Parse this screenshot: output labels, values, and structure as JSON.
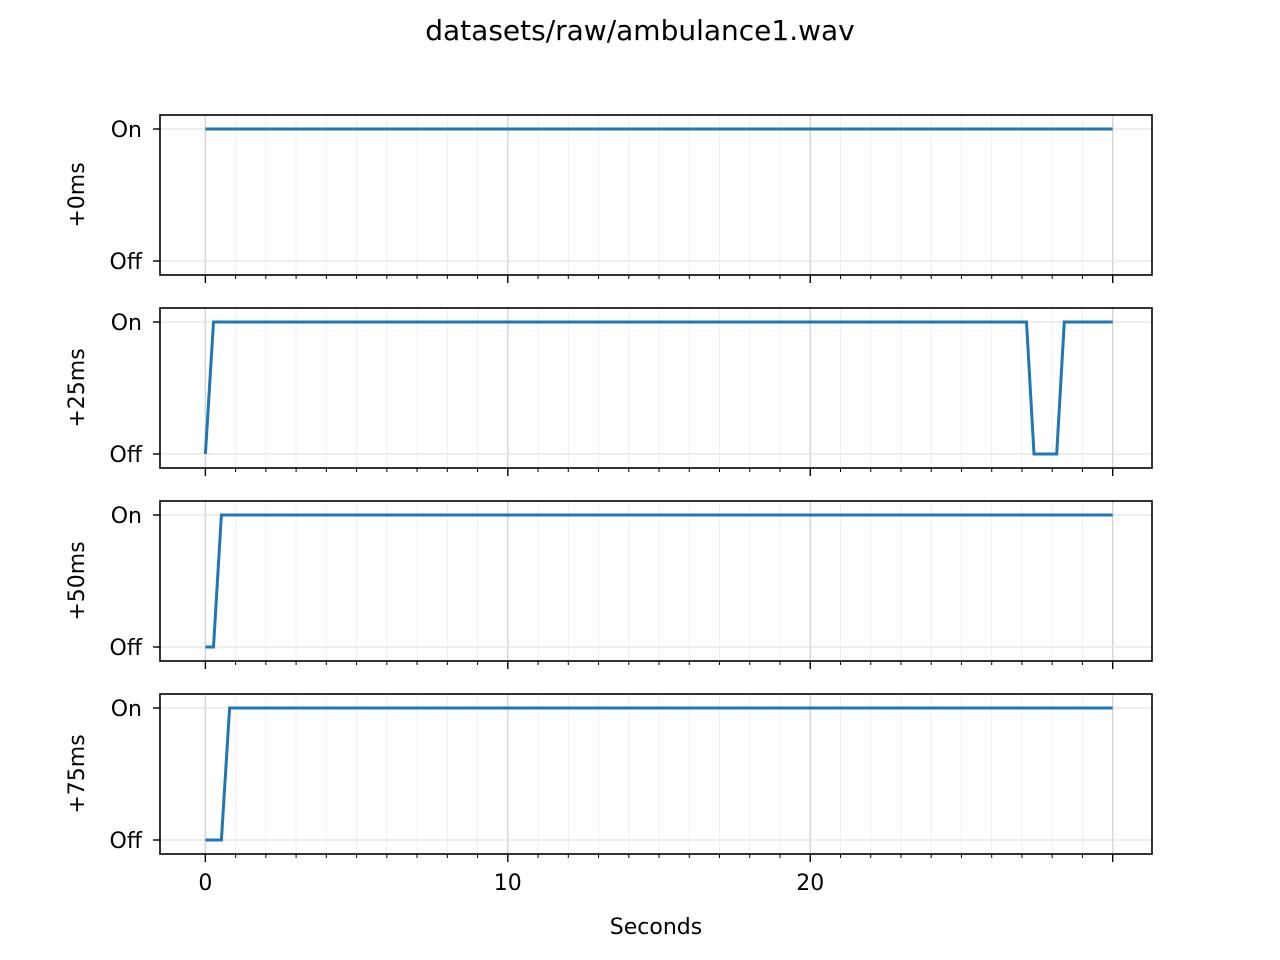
{
  "figure": {
    "title": "datasets/raw/ambulance1.wav"
  },
  "colors": {
    "line": "#1f77b4",
    "grid": "#dddddd",
    "axis": "#000000"
  },
  "chart_data": [
    {
      "type": "line",
      "ylabel": "+0ms",
      "xlim": [
        -1.5,
        31.3
      ],
      "yticks": [
        {
          "value": 0,
          "label": "Off"
        },
        {
          "value": 1,
          "label": "On"
        }
      ],
      "grid": true,
      "series": [
        {
          "x": [
            0,
            30
          ],
          "y": [
            1,
            1
          ]
        }
      ]
    },
    {
      "type": "line",
      "ylabel": "+25ms",
      "xlim": [
        -1.5,
        31.3
      ],
      "yticks": [
        {
          "value": 0,
          "label": "Off"
        },
        {
          "value": 1,
          "label": "On"
        }
      ],
      "grid": true,
      "series": [
        {
          "x": [
            0,
            0.27,
            27.15,
            27.4,
            28.15,
            28.4,
            30
          ],
          "y": [
            0,
            1,
            1,
            0,
            0,
            1,
            1
          ]
        }
      ]
    },
    {
      "type": "line",
      "ylabel": "+50ms",
      "xlim": [
        -1.5,
        31.3
      ],
      "yticks": [
        {
          "value": 0,
          "label": "Off"
        },
        {
          "value": 1,
          "label": "On"
        }
      ],
      "grid": true,
      "series": [
        {
          "x": [
            0,
            0.27,
            0.53,
            30
          ],
          "y": [
            0,
            0,
            1,
            1
          ]
        }
      ]
    },
    {
      "type": "line",
      "ylabel": "+75ms",
      "xlabel": "Seconds",
      "xlim": [
        -1.5,
        31.3
      ],
      "xticks": [
        0,
        10,
        20
      ],
      "yticks": [
        {
          "value": 0,
          "label": "Off"
        },
        {
          "value": 1,
          "label": "On"
        }
      ],
      "grid": true,
      "series": [
        {
          "x": [
            0,
            0.53,
            0.8,
            30
          ],
          "y": [
            0,
            0,
            1,
            1
          ]
        }
      ]
    }
  ]
}
